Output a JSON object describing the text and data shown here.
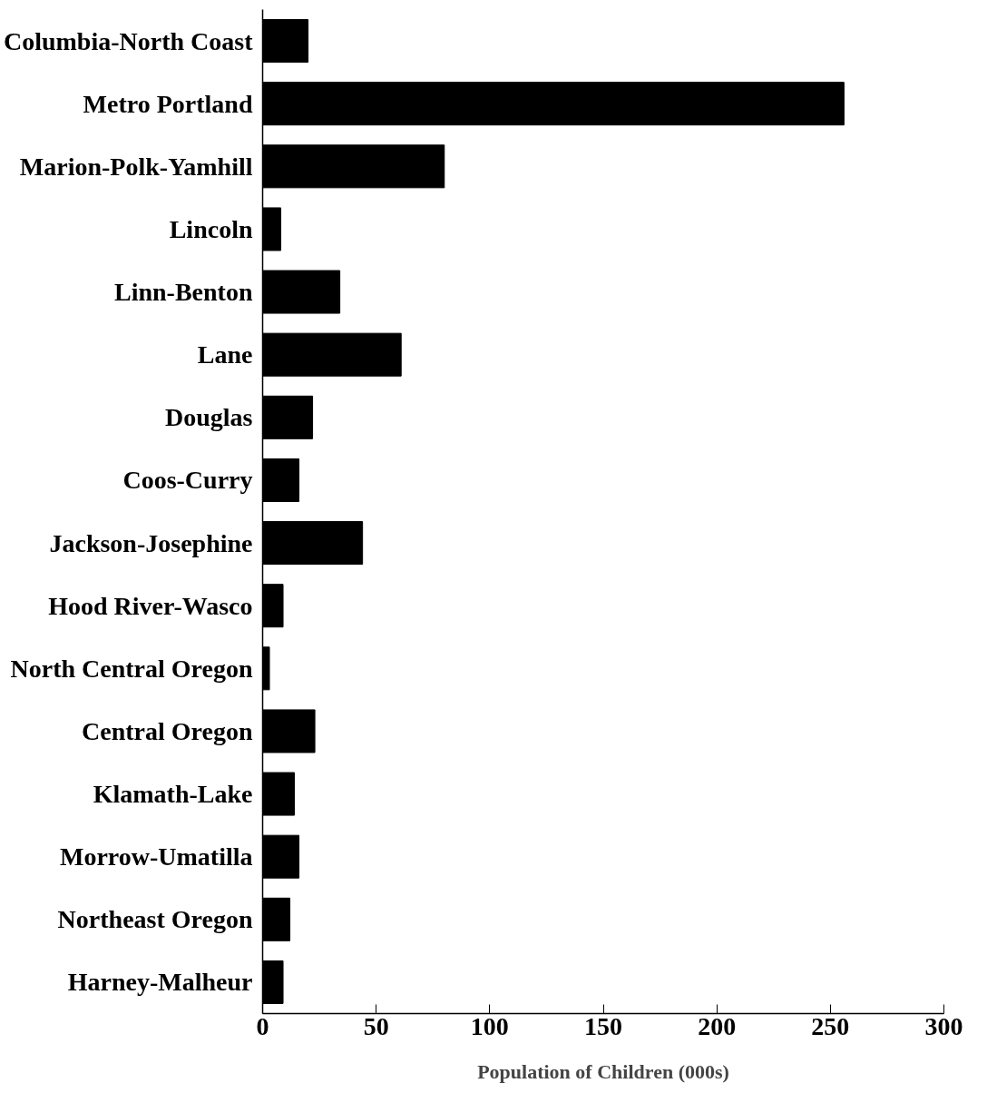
{
  "chart_data": {
    "type": "bar",
    "orientation": "horizontal",
    "xlabel": "Population of Children (000s)",
    "categories": [
      "Columbia-North Coast",
      "Metro Portland",
      "Marion-Polk-Yamhill",
      "Lincoln",
      "Linn-Benton",
      "Lane",
      "Douglas",
      "Coos-Curry",
      "Jackson-Josephine",
      "Hood River-Wasco",
      "North Central Oregon",
      "Central Oregon",
      "Klamath-Lake",
      "Morrow-Umatilla",
      "Northeast Oregon",
      "Harney-Malheur"
    ],
    "values": [
      20,
      256,
      80,
      8,
      34,
      61,
      22,
      16,
      44,
      9,
      3,
      23,
      14,
      16,
      12,
      9
    ],
    "color": "#000000",
    "xlim": [
      0,
      300
    ],
    "xticks": [
      0,
      50,
      100,
      150,
      200,
      250,
      300
    ],
    "grid": false
  }
}
